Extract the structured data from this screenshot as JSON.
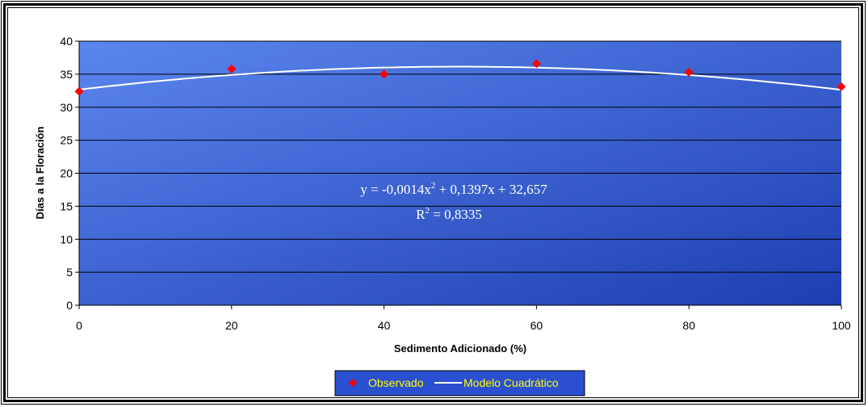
{
  "chart_data": {
    "type": "scatter",
    "xlabel": "Sedimento Adicionado (%)",
    "ylabel": "Días a la Floración",
    "xlim": [
      0,
      100
    ],
    "ylim": [
      0,
      40
    ],
    "x_ticks": [
      "0",
      "20",
      "40",
      "60",
      "80",
      "100"
    ],
    "y_ticks": [
      "0",
      "5",
      "10",
      "15",
      "20",
      "25",
      "30",
      "35",
      "40"
    ],
    "grid": true,
    "legend_position": "bottom",
    "series": [
      {
        "name": "Observado",
        "type": "scatter",
        "marker": "diamond",
        "color": "#ff0000",
        "x": [
          0,
          20,
          40,
          60,
          80,
          100
        ],
        "y": [
          32.4,
          35.8,
          35.0,
          36.6,
          35.3,
          33.1
        ]
      },
      {
        "name": "Modelo Cuadrático",
        "type": "line",
        "color": "#ffffff",
        "coefficients": {
          "a": -0.0014,
          "b": 0.1397,
          "c": 32.657
        }
      }
    ],
    "annotation": {
      "equation_prefix": "y = -0,0014x",
      "equation_exp": "2",
      "equation_suffix": " + 0,1397x + 32,657",
      "r2_prefix": "R",
      "r2_exp": "2",
      "r2_suffix": " = 0,8335"
    },
    "plot_background": [
      "#5b86ee",
      "#1d3eb0"
    ],
    "legend_background": "#2a4fd0"
  }
}
